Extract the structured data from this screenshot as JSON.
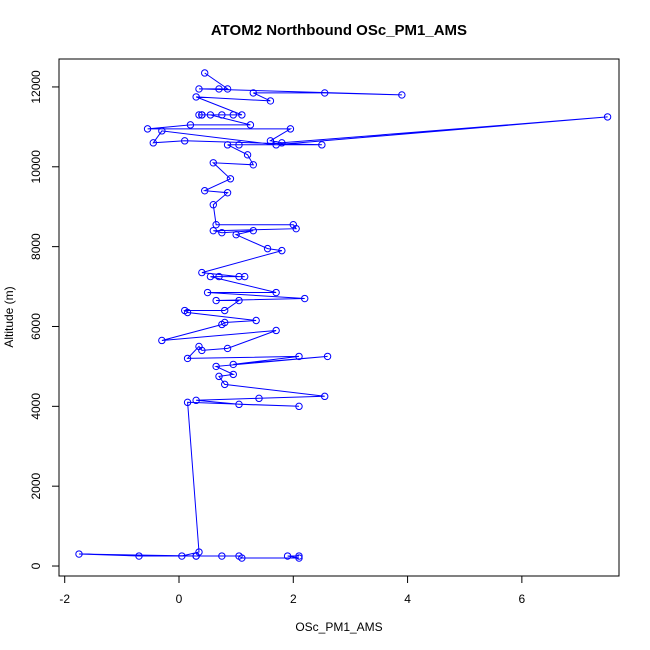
{
  "chart_data": {
    "type": "scatter",
    "title": "ATOM2 Northbound OSc_PM1_AMS",
    "xlabel": "OSc_PM1_AMS",
    "ylabel": "Altitude (m)",
    "xlim": [
      -2.1,
      7.7
    ],
    "ylim": [
      -250,
      12700
    ],
    "x_ticks": [
      -2,
      0,
      2,
      4,
      6
    ],
    "x_tick_labels": [
      "-2",
      "0",
      "2",
      "4",
      "6"
    ],
    "y_ticks": [
      0,
      2000,
      4000,
      6000,
      8000,
      10000,
      12000
    ],
    "y_tick_labels": [
      "0",
      "2000",
      "4000",
      "6000",
      "8000",
      "10000",
      "12000"
    ],
    "grid": false,
    "color": "#0000ff",
    "series": [
      {
        "x": [
          0.45,
          0.85,
          0.7,
          0.35,
          3.9,
          2.55,
          1.3,
          1.6,
          0.3,
          1.1,
          0.75,
          0.95,
          0.4,
          0.4,
          0.35,
          0.55,
          1.25,
          0.2,
          -0.55,
          1.95,
          1.6,
          1.8,
          7.5,
          1.7,
          -0.3,
          -0.45,
          0.1,
          2.5,
          1.05,
          0.85,
          1.2,
          1.3,
          0.6,
          0.9,
          0.45,
          0.85,
          0.6,
          0.65,
          2.0,
          2.05,
          0.6,
          0.75,
          1.3,
          1.0,
          1.55,
          1.8,
          0.4,
          1.05,
          1.15,
          0.7,
          0.55,
          1.7,
          0.5,
          2.2,
          0.65,
          1.05,
          0.8,
          0.1,
          0.15,
          1.35,
          0.8,
          0.75,
          -0.3,
          1.7,
          0.85,
          0.4,
          0.35,
          0.15,
          2.1,
          0.95,
          2.6,
          0.65,
          0.95,
          0.7,
          0.8,
          2.55,
          1.4,
          0.3,
          1.05,
          2.1,
          0.15,
          0.35,
          0.05,
          0.3,
          -1.75,
          -0.7,
          0.3,
          0.75,
          1.05,
          1.1,
          2.1,
          1.9,
          2.1
        ],
        "y": [
          12350,
          11950,
          11950,
          11950,
          11800,
          11850,
          11850,
          11650,
          11750,
          11300,
          11300,
          11300,
          11300,
          11300,
          11300,
          11300,
          11050,
          11050,
          10950,
          10950,
          10650,
          10600,
          11250,
          10550,
          10900,
          10600,
          10650,
          10550,
          10550,
          10550,
          10300,
          10050,
          10100,
          9700,
          9400,
          9350,
          9050,
          8550,
          8550,
          8450,
          8400,
          8350,
          8400,
          8300,
          7950,
          7900,
          7350,
          7250,
          7250,
          7250,
          7250,
          6850,
          6850,
          6700,
          6650,
          6650,
          6400,
          6400,
          6350,
          6150,
          6100,
          6050,
          5650,
          5900,
          5450,
          5400,
          5500,
          5200,
          5250,
          5050,
          5250,
          5000,
          4800,
          4750,
          4550,
          4250,
          4200,
          4150,
          4050,
          4000,
          4100,
          350,
          250,
          250,
          300,
          250,
          250,
          250,
          250,
          200,
          200,
          250,
          250
        ]
      }
    ]
  }
}
